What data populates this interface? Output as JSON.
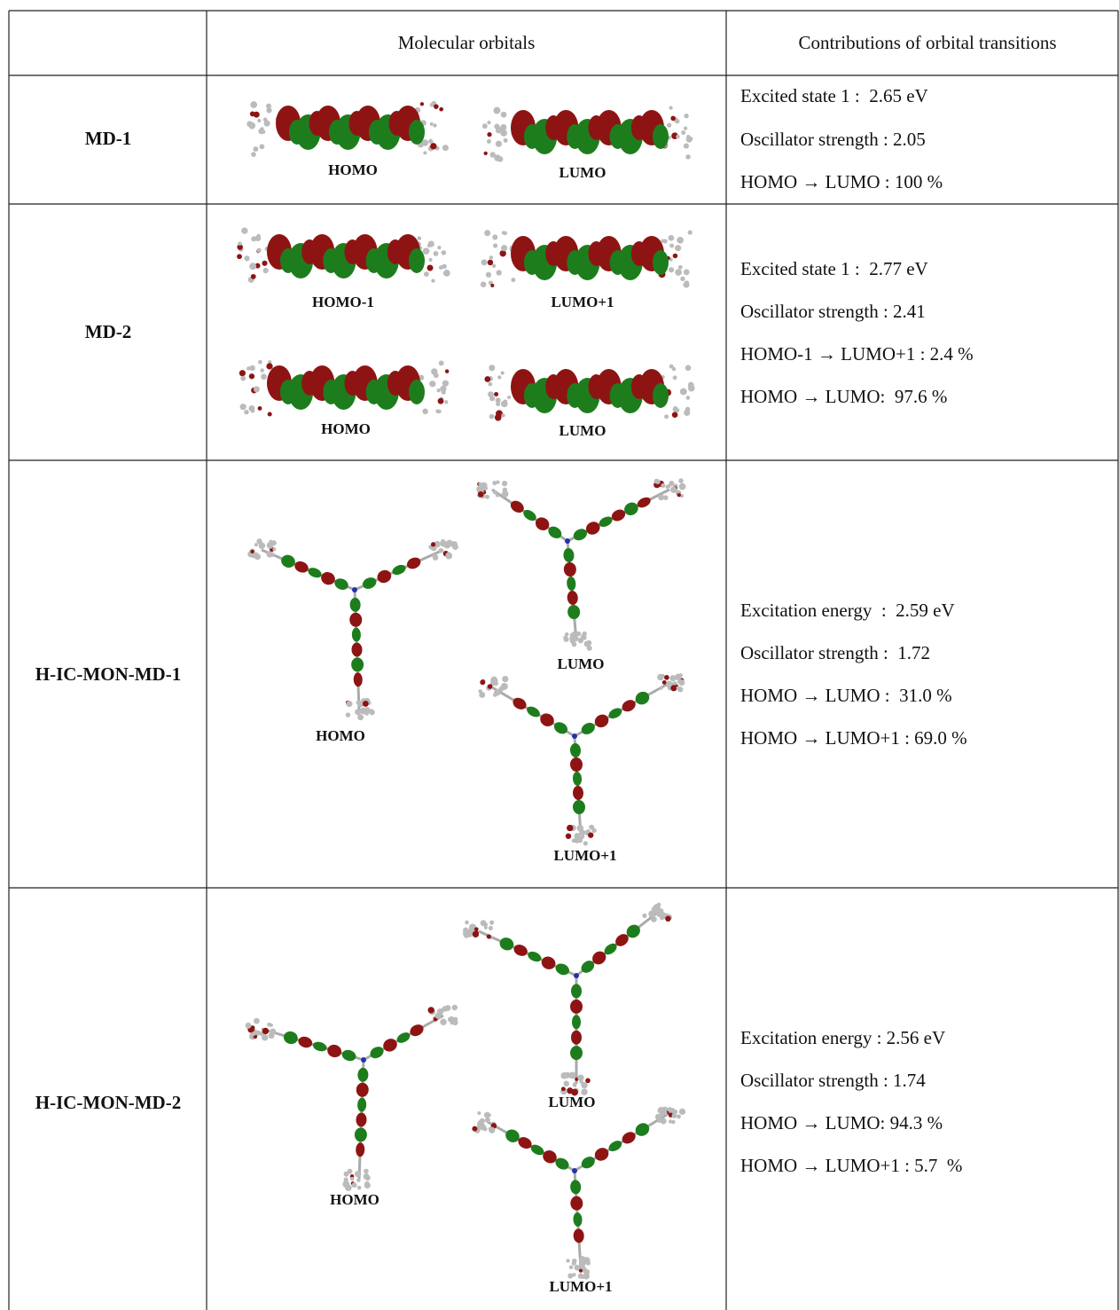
{
  "table": {
    "columns": [
      "Molecular orbitals",
      "Contributions of orbital transitions"
    ],
    "rows": [
      {
        "name": "MD-1",
        "orbitals": [
          "HOMO",
          "LUMO"
        ],
        "transitions": [
          "Excited state 1 :  2.65 eV",
          "Oscillator strength : 2.05",
          "HOMO → LUMO : 100 %"
        ]
      },
      {
        "name": "MD-2",
        "orbitals": [
          "HOMO-1",
          "LUMO+1",
          "HOMO",
          "LUMO"
        ],
        "transitions": [
          "Excited state 1 :  2.77 eV",
          "Oscillator strength : 2.41",
          "HOMO-1 → LUMO+1 : 2.4 %",
          "HOMO → LUMO:  97.6 %"
        ]
      },
      {
        "name": "H-IC-MON-MD-1",
        "orbitals": [
          "HOMO",
          "LUMO",
          "LUMO+1"
        ],
        "transitions": [
          "Excitation energy  :  2.59 eV",
          "Oscillator strength :  1.72",
          "HOMO → LUMO :  31.0 %",
          "HOMO → LUMO+1 : 69.0 %"
        ]
      },
      {
        "name": "H-IC-MON-MD-2",
        "orbitals": [
          "HOMO",
          "LUMO",
          "LUMO+1"
        ],
        "transitions": [
          "Excitation energy : 2.56 eV",
          "Oscillator strength : 1.74",
          "HOMO → LUMO: 94.3 %",
          "HOMO → LUMO+1 : 5.7  %"
        ]
      }
    ]
  }
}
